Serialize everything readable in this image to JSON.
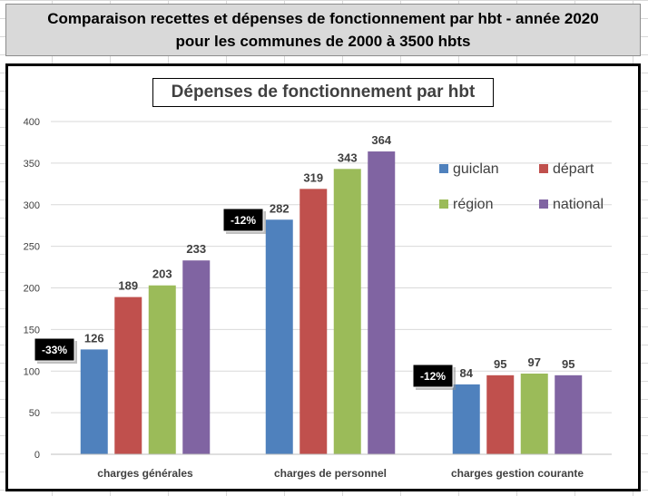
{
  "header": {
    "line1": "Comparaison recettes et dépenses de fonctionnement par hbt  -  année 2020",
    "line2": "pour les communes de 2000 à 3500 hbts"
  },
  "chart_data": {
    "type": "bar",
    "title": "Dépenses de fonctionnement par hbt",
    "xlabel": "",
    "ylabel": "",
    "categories": [
      "charges générales",
      "charges de personnel",
      "charges gestion courante"
    ],
    "series": [
      {
        "name": "guiclan",
        "color": "#4f81bd",
        "values": [
          126,
          282,
          84
        ]
      },
      {
        "name": "départ",
        "color": "#c0504d",
        "values": [
          189,
          319,
          95
        ]
      },
      {
        "name": "région",
        "color": "#9bbb59",
        "values": [
          203,
          343,
          97
        ]
      },
      {
        "name": "national",
        "color": "#8064a2",
        "values": [
          233,
          364,
          95
        ]
      }
    ],
    "ylim": [
      0,
      400
    ],
    "yticks": [
      0,
      50,
      100,
      150,
      200,
      250,
      300,
      350,
      400
    ],
    "grid": true,
    "legend_position": "right",
    "annotations": [
      "-33%",
      "-12%",
      "-12%"
    ]
  }
}
